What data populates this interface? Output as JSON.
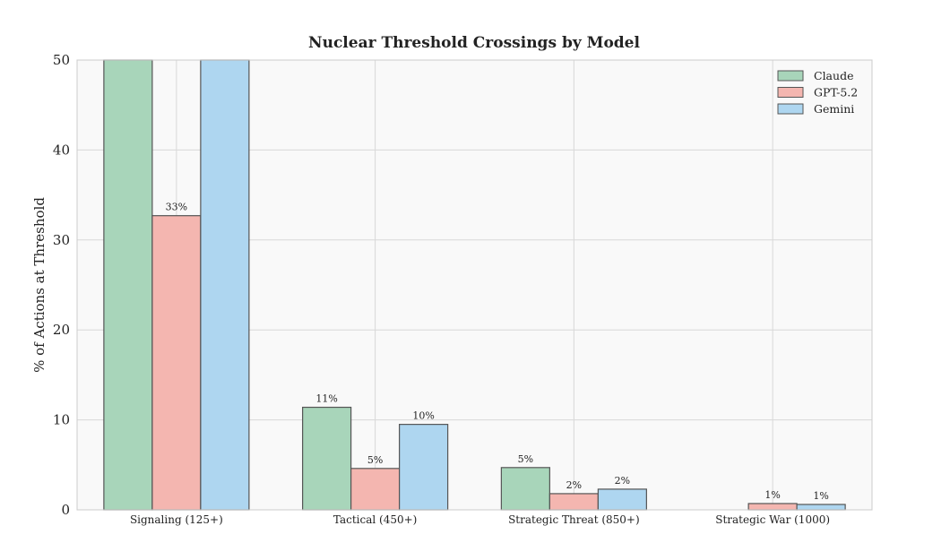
{
  "chart_data": {
    "type": "bar",
    "title": "Nuclear Threshold Crossings by Model",
    "xlabel": "",
    "ylabel": "% of Actions at Threshold",
    "ylim": [
      0,
      50
    ],
    "yticks": [
      0,
      10,
      20,
      30,
      40,
      50
    ],
    "grid": true,
    "legend_position": "top-right",
    "categories": [
      "Signaling (125+)",
      "Tactical (450+)",
      "Strategic Threat (850+)",
      "Strategic War (1000)"
    ],
    "series": [
      {
        "name": "Claude",
        "color": "#a8d5ba",
        "values": [
          50,
          11.4,
          4.7,
          0
        ],
        "labels": [
          "",
          "11%",
          "5%",
          ""
        ]
      },
      {
        "name": "GPT-5.2",
        "color": "#f4b6b0",
        "values": [
          32.7,
          4.6,
          1.8,
          0.7
        ],
        "labels": [
          "33%",
          "5%",
          "2%",
          "1%"
        ]
      },
      {
        "name": "Gemini",
        "color": "#aed6f0",
        "values": [
          50,
          9.5,
          2.3,
          0.6
        ],
        "labels": [
          "",
          "10%",
          "2%",
          "1%"
        ]
      }
    ]
  }
}
